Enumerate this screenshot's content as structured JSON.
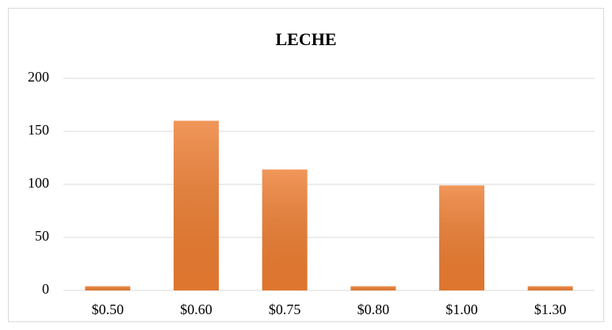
{
  "chart_data": {
    "type": "bar",
    "title": "LECHE",
    "categories": [
      "$0.50",
      "$0.60",
      "$0.75",
      "$0.80",
      "$1.00",
      "$1.30"
    ],
    "values": [
      4,
      160,
      114,
      4,
      99,
      4
    ],
    "color": "#ed7d31",
    "ylim": [
      0,
      200
    ],
    "yticks": [
      0,
      50,
      100,
      150,
      200
    ],
    "grid": true
  }
}
